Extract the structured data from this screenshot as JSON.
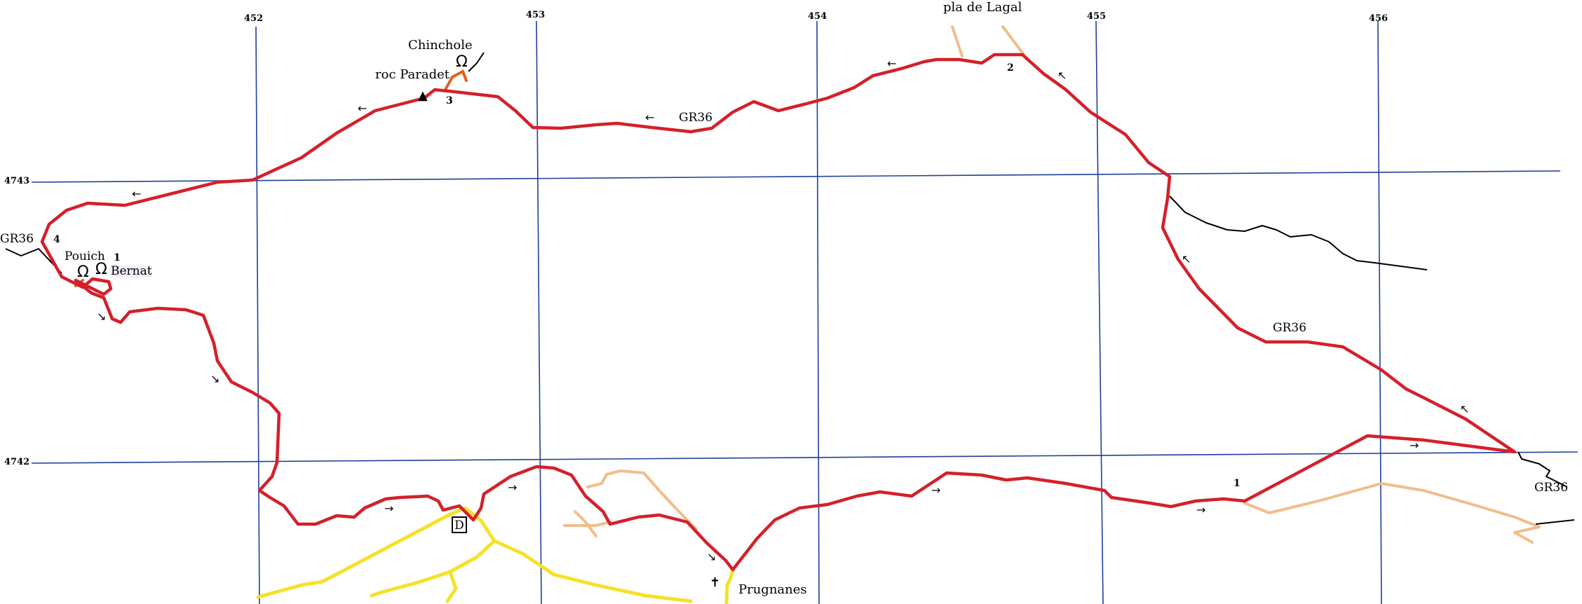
{
  "grid": {
    "easting_labels": [
      "452",
      "453",
      "454",
      "455",
      "456"
    ],
    "northing_labels": [
      "4743",
      "4742"
    ]
  },
  "colors": {
    "grid": "#1f3f9c",
    "main_route": "#d4202a",
    "spur": "#e0601c",
    "paved_road": "#f5e12a",
    "dirt_track": "#f0bd8a",
    "other_path": "#000000"
  },
  "places": {
    "chinchole": "Chinchole",
    "roc_paradet": "roc Paradet",
    "pla_de_lagal": "pla de Lagal",
    "pouich": "Pouich",
    "bernat": "Bernat",
    "prugnanes": "Prugnanes"
  },
  "trail_labels": {
    "gr_top": "GR36",
    "gr_left": "GR36",
    "gr_right": "GR36",
    "gr_bottom_right": "GR36"
  },
  "waypoints": {
    "wp1_pouich": "1",
    "wp1_road": "1",
    "wp2": "2",
    "wp3": "3",
    "wp4": "4"
  },
  "icons": {
    "spring": "Ω",
    "summit": "▲",
    "church": "✝",
    "start": "D",
    "arrow_left": "←",
    "arrow_right": "→",
    "arrow_down_right": "↘",
    "arrow_up_left": "↖"
  }
}
